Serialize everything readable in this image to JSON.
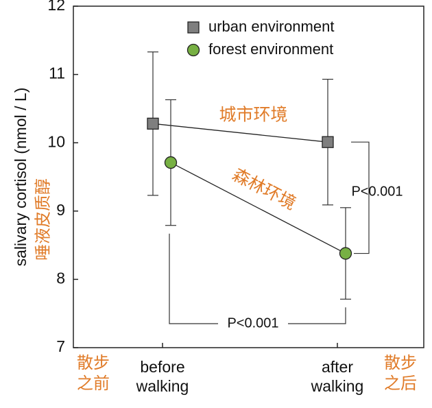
{
  "chart_data": {
    "type": "line",
    "y_label": "salivary cortisol (nmol / L)",
    "y_label_cn": "唾液皮质醇",
    "categories": [
      "before\nwalking",
      "after\nwalking"
    ],
    "category_notes": [
      "散步\n之前",
      "散步\n之后"
    ],
    "series": [
      {
        "name": "urban environment",
        "label": "城市环境",
        "marker": "square",
        "color": "#7f7f7f",
        "values": [
          10.28,
          10.01
        ],
        "errors": [
          1.05,
          0.92
        ]
      },
      {
        "name": "forest environment",
        "label": "森林环境",
        "marker": "circle",
        "color": "#77b043",
        "values": [
          9.71,
          8.38
        ],
        "errors": [
          0.92,
          0.67
        ]
      }
    ],
    "significance": [
      "P<0.001",
      "P<0.001"
    ],
    "ylim": [
      7,
      12
    ],
    "yticks": [
      7,
      8,
      9,
      10,
      11,
      12
    ],
    "grid": false,
    "legend": "top"
  }
}
